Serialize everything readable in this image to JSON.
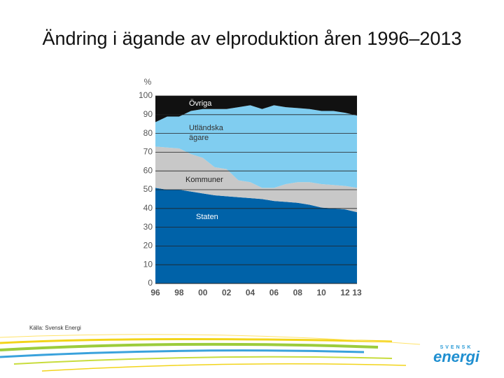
{
  "chart_data": {
    "type": "stacked-area",
    "title": "Ändring i ägande av elproduktion åren 1996–2013",
    "y_label": "%",
    "source": "Källa: Svensk Energi",
    "categories": [
      "96",
      null,
      "98",
      null,
      "00",
      null,
      "02",
      null,
      "04",
      null,
      "06",
      null,
      "08",
      null,
      "10",
      null,
      "12",
      "13"
    ],
    "ylim": [
      0,
      100
    ],
    "yticks": [
      0,
      10,
      20,
      30,
      40,
      50,
      60,
      70,
      80,
      90,
      100
    ],
    "grid": true,
    "series": [
      {
        "name": "Staten",
        "color": "#0062a8",
        "values": [
          51,
          50,
          50,
          49,
          48,
          47,
          46.5,
          46,
          45.5,
          45,
          44,
          43.5,
          43,
          42,
          40.5,
          40,
          39.5,
          38
        ]
      },
      {
        "name": "Kommuner",
        "color": "#c8c8c8",
        "values": [
          22,
          22.5,
          22,
          20,
          19,
          15,
          14.5,
          9,
          8.5,
          6,
          7,
          9.5,
          11,
          12,
          12.5,
          12.5,
          12.5,
          13
        ]
      },
      {
        "name": "Utländska ägare",
        "color": "#80cdf0",
        "values": [
          13,
          16.5,
          17,
          23,
          26,
          31,
          32,
          39,
          41,
          42,
          44,
          41,
          39.5,
          39,
          39,
          39.5,
          39,
          38.5
        ]
      },
      {
        "name": "Övriga",
        "color": "#111111",
        "values": [
          14,
          11,
          11,
          8,
          7,
          7,
          7,
          6,
          5,
          7,
          5,
          6,
          6.5,
          7,
          8,
          8,
          9,
          10.5
        ]
      }
    ]
  },
  "logo": {
    "top": "SVENSK",
    "bottom": "energi"
  }
}
